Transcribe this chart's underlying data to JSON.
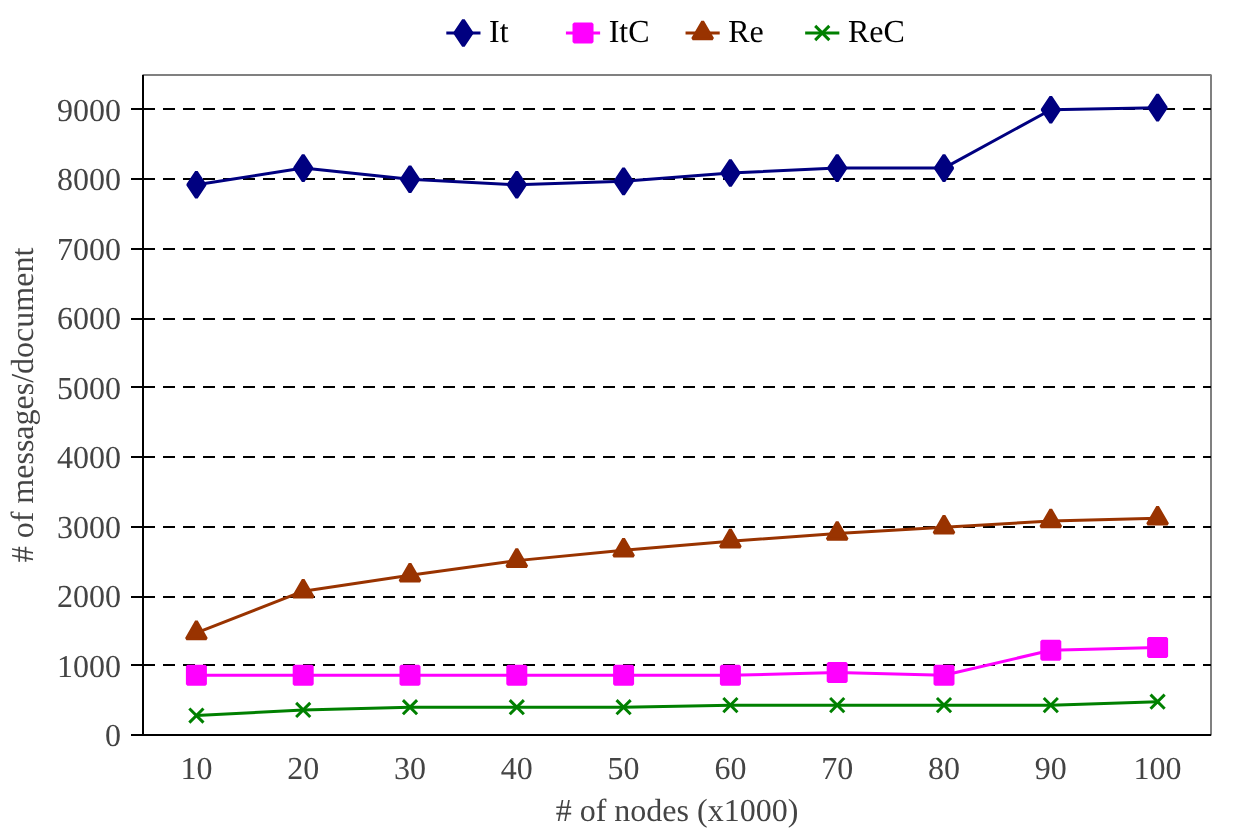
{
  "chart_data": {
    "type": "line",
    "xlabel": "# of nodes (x1000)",
    "ylabel": "# of messages/document",
    "categories": [
      "10",
      "20",
      "30",
      "40",
      "50",
      "60",
      "70",
      "80",
      "90",
      "100"
    ],
    "series": [
      {
        "name": "It",
        "color": "#000080",
        "marker": "diamond",
        "values": [
          7920,
          8160,
          8000,
          7920,
          7970,
          8090,
          8160,
          8160,
          9000,
          9030
        ]
      },
      {
        "name": "ItC",
        "color": "#ff00ff",
        "marker": "square",
        "values": [
          860,
          860,
          860,
          860,
          860,
          860,
          900,
          860,
          1220,
          1260
        ]
      },
      {
        "name": "Re",
        "color": "#993300",
        "marker": "triangle",
        "values": [
          1470,
          2070,
          2300,
          2510,
          2660,
          2790,
          2900,
          2990,
          3080,
          3120
        ]
      },
      {
        "name": "ReC",
        "color": "#008000",
        "marker": "cross",
        "values": [
          280,
          360,
          400,
          400,
          400,
          430,
          430,
          430,
          430,
          480
        ]
      }
    ],
    "ylim": [
      0,
      9500
    ],
    "yticks": [
      0,
      1000,
      2000,
      3000,
      4000,
      5000,
      6000,
      7000,
      8000,
      9000
    ],
    "grid": "y",
    "legend": "top"
  }
}
